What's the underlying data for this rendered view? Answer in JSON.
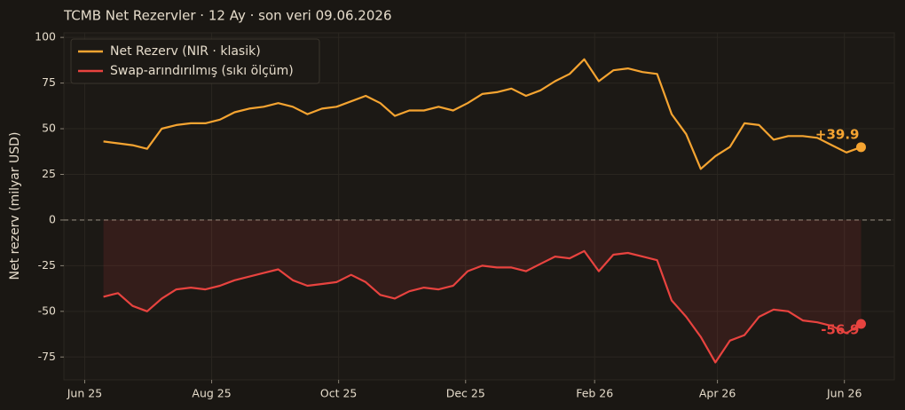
{
  "chart_data": {
    "type": "line",
    "title": "TCMB Net Rezervler · 12 Ay · son veri 09.06.2026",
    "y_label": "Net rezerv (milyar USD)",
    "x": [
      "2025-06-10",
      "2025-06-17",
      "2025-06-24",
      "2025-07-01",
      "2025-07-08",
      "2025-07-15",
      "2025-07-22",
      "2025-07-29",
      "2025-08-05",
      "2025-08-12",
      "2025-08-19",
      "2025-08-26",
      "2025-09-02",
      "2025-09-09",
      "2025-09-16",
      "2025-09-23",
      "2025-09-30",
      "2025-10-07",
      "2025-10-14",
      "2025-10-21",
      "2025-10-28",
      "2025-11-04",
      "2025-11-11",
      "2025-11-18",
      "2025-11-25",
      "2025-12-02",
      "2025-12-09",
      "2025-12-16",
      "2025-12-23",
      "2025-12-30",
      "2026-01-06",
      "2026-01-13",
      "2026-01-20",
      "2026-01-27",
      "2026-02-03",
      "2026-02-10",
      "2026-02-17",
      "2026-02-24",
      "2026-03-03",
      "2026-03-10",
      "2026-03-17",
      "2026-03-24",
      "2026-03-31",
      "2026-04-07",
      "2026-04-14",
      "2026-04-21",
      "2026-04-28",
      "2026-05-05",
      "2026-05-12",
      "2026-05-19",
      "2026-05-26",
      "2026-06-02",
      "2026-06-09"
    ],
    "series": [
      {
        "name": "Net Rezerv (NIR · klasik)",
        "color": "#f5a431",
        "values": [
          43,
          42,
          41,
          39,
          50,
          52,
          53,
          53,
          55,
          59,
          61,
          62,
          64,
          62,
          58,
          61,
          62,
          65,
          68,
          64,
          57,
          60,
          60,
          62,
          60,
          64,
          69,
          70,
          72,
          68,
          71,
          76,
          80,
          88,
          76,
          82,
          83,
          81,
          80,
          58,
          47,
          28,
          35,
          40,
          53,
          52,
          44,
          46,
          46,
          45,
          41,
          37,
          39.9
        ],
        "value_labels": [
          null,
          null,
          null,
          null,
          null,
          null,
          null,
          null,
          null,
          null,
          null,
          null,
          null,
          null,
          null,
          null,
          null,
          null,
          null,
          null,
          null,
          null,
          null,
          null,
          null,
          null,
          null,
          null,
          null,
          null,
          null,
          null,
          null,
          null,
          null,
          null,
          null,
          null,
          null,
          null,
          null,
          null,
          null,
          null,
          null,
          null,
          null,
          null,
          null,
          null,
          null,
          null,
          "+39.9"
        ]
      },
      {
        "name": "Swap-arındırılmış (sıkı ölçüm)",
        "color": "#e8433f",
        "values": [
          -42,
          -40,
          -47,
          -50,
          -43,
          -38,
          -37,
          -38,
          -36,
          -33,
          -31,
          -29,
          -27,
          -33,
          -36,
          -35,
          -34,
          -30,
          -34,
          -41,
          -43,
          -39,
          -37,
          -38,
          -36,
          -28,
          -25,
          -26,
          -26,
          -28,
          -24,
          -20,
          -21,
          -17,
          -28,
          -19,
          -18,
          -20,
          -22,
          -44,
          -53,
          -64,
          -78,
          -66,
          -63,
          -53,
          -49,
          -50,
          -55,
          -56,
          -58,
          -62,
          -56.9
        ],
        "value_labels": [
          null,
          null,
          null,
          null,
          null,
          null,
          null,
          null,
          null,
          null,
          null,
          null,
          null,
          null,
          null,
          null,
          null,
          null,
          null,
          null,
          null,
          null,
          null,
          null,
          null,
          null,
          null,
          null,
          null,
          null,
          null,
          null,
          null,
          null,
          null,
          null,
          null,
          null,
          null,
          null,
          null,
          null,
          null,
          null,
          null,
          null,
          null,
          null,
          null,
          null,
          null,
          null,
          "-56.9"
        ]
      }
    ],
    "xlim": [
      "2025-05-22",
      "2026-06-25"
    ],
    "xticks": [
      {
        "value": "2025-06-01",
        "label": "Jun 25"
      },
      {
        "value": "2025-08-01",
        "label": "Aug 25"
      },
      {
        "value": "2025-10-01",
        "label": "Oct 25"
      },
      {
        "value": "2025-12-01",
        "label": "Dec 25"
      },
      {
        "value": "2026-02-01",
        "label": "Feb 26"
      },
      {
        "value": "2026-04-01",
        "label": "Apr 26"
      },
      {
        "value": "2026-06-01",
        "label": "Jun 26"
      }
    ],
    "ylim": [
      -87.5,
      102.5
    ],
    "yticks": [
      -75,
      -50,
      -25,
      0,
      25,
      50,
      75,
      100
    ],
    "hline": 0,
    "grid": true,
    "legend": "upper-left"
  }
}
